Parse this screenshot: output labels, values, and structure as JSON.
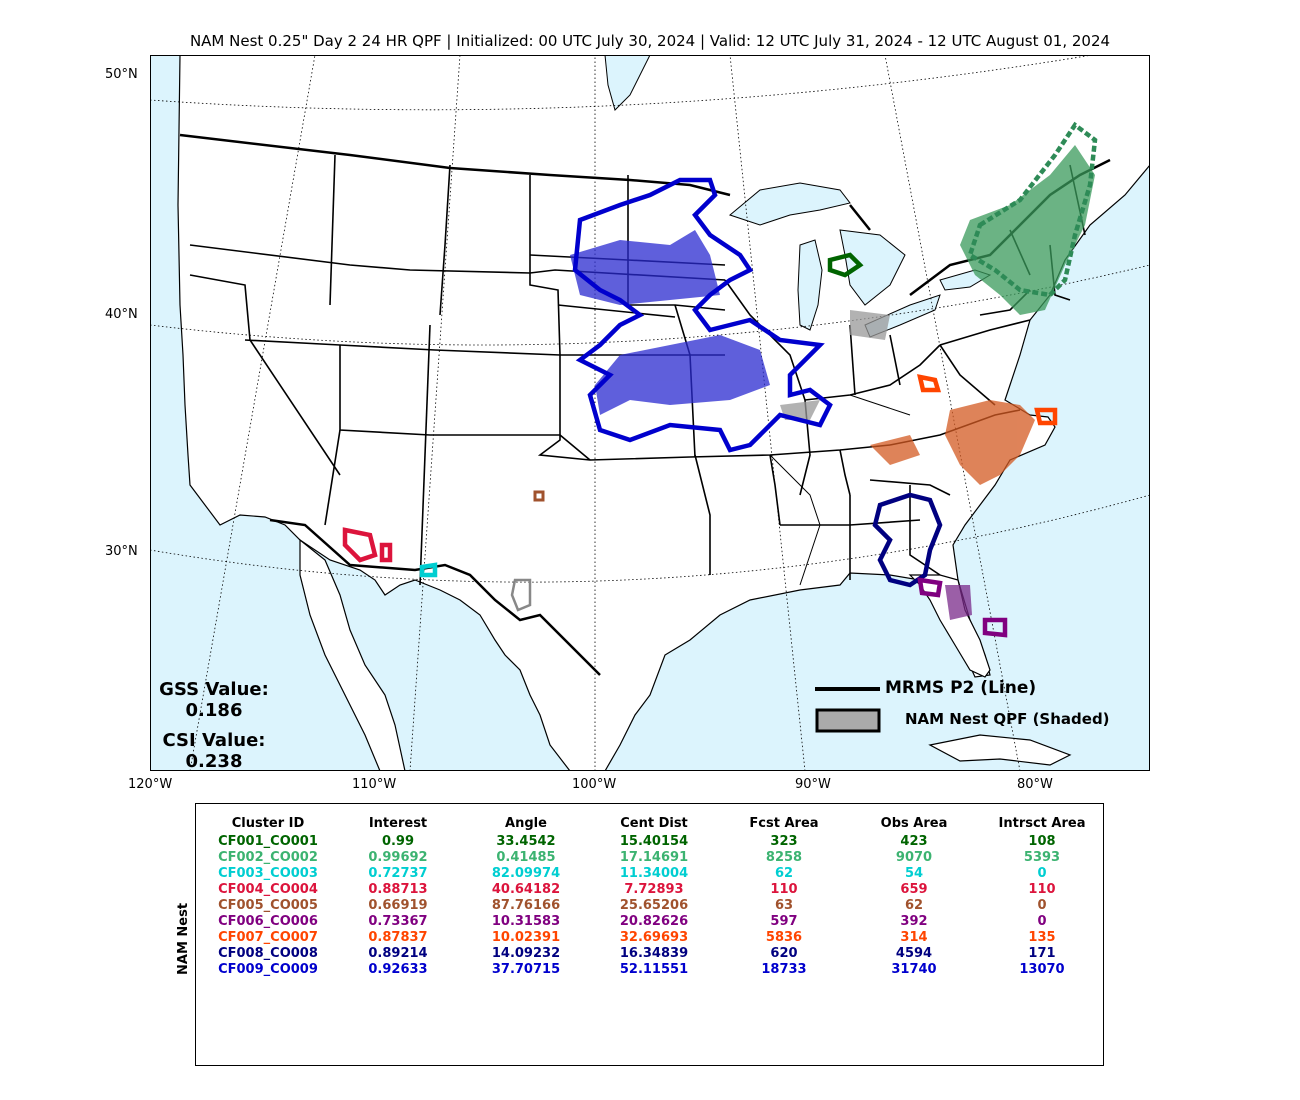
{
  "title": "NAM Nest 0.25\" Day 2 24 HR QPF | Initialized: 00 UTC July 30, 2024 | Valid: 12 UTC July 31, 2024 - 12 UTC August 01, 2024",
  "map": {
    "lon_labels": [
      "120°W",
      "110°W",
      "100°W",
      "90°W",
      "80°W"
    ],
    "lat_labels": [
      "50°N",
      "40°N",
      "30°N"
    ],
    "colors": {
      "ocean": "#dcf4fd",
      "land": "#ffffff",
      "border": "#000000"
    }
  },
  "scores": {
    "gss_label": "GSS Value:",
    "gss_value": "0.186",
    "csi_label": "CSI Value:",
    "csi_value": "0.238"
  },
  "legend": {
    "obs_label": "MRMS P2 (Line)",
    "fcst_label": "NAM Nest QPF (Shaded)"
  },
  "table": {
    "ylabel": "NAM Nest",
    "headers": [
      "Cluster ID",
      "Interest",
      "Angle",
      "Cent Dist",
      "Fcst Area",
      "Obs Area",
      "Intrsct Area"
    ],
    "rows": [
      {
        "color": "#006400",
        "cells": [
          "CF001_CO001",
          "0.99",
          "33.4542",
          "15.40154",
          "323",
          "423",
          "108"
        ]
      },
      {
        "color": "#3cb371",
        "cells": [
          "CF002_CO002",
          "0.99692",
          "0.41485",
          "17.14691",
          "8258",
          "9070",
          "5393"
        ]
      },
      {
        "color": "#00ced1",
        "cells": [
          "CF003_CO003",
          "0.72737",
          "82.09974",
          "11.34004",
          "62",
          "54",
          "0"
        ]
      },
      {
        "color": "#dc143c",
        "cells": [
          "CF004_CO004",
          "0.88713",
          "40.64182",
          "7.72893",
          "110",
          "659",
          "110"
        ]
      },
      {
        "color": "#a0522d",
        "cells": [
          "CF005_CO005",
          "0.66919",
          "87.76166",
          "25.65206",
          "63",
          "62",
          "0"
        ]
      },
      {
        "color": "#800080",
        "cells": [
          "CF006_CO006",
          "0.73367",
          "10.31583",
          "20.82626",
          "597",
          "392",
          "0"
        ]
      },
      {
        "color": "#ff4500",
        "cells": [
          "CF007_CO007",
          "0.87837",
          "10.02391",
          "32.69693",
          "5836",
          "314",
          "135"
        ]
      },
      {
        "color": "#000080",
        "cells": [
          "CF008_CO008",
          "0.89214",
          "14.09232",
          "16.34839",
          "620",
          "4594",
          "171"
        ]
      },
      {
        "color": "#0000cd",
        "cells": [
          "CF009_CO009",
          "0.92633",
          "37.70715",
          "52.11551",
          "18733",
          "31740",
          "13070"
        ]
      }
    ]
  }
}
